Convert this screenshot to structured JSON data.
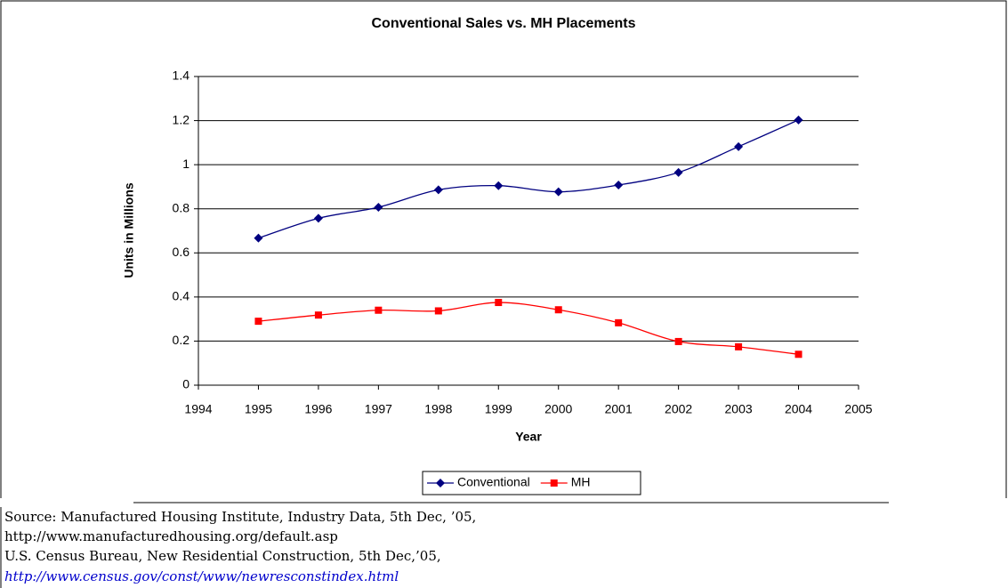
{
  "chart_data": {
    "type": "line",
    "title": "Conventional Sales vs. MH Placements",
    "x_label": "Year",
    "y_label": "Units in Millions",
    "x": [
      1995,
      1996,
      1997,
      1998,
      1999,
      2000,
      2001,
      2002,
      2003,
      2004
    ],
    "series": [
      {
        "name": "Conventional",
        "color": "#000080",
        "marker": "diamond",
        "values": [
          0.667,
          0.757,
          0.807,
          0.886,
          0.905,
          0.877,
          0.908,
          0.965,
          1.082,
          1.203
        ]
      },
      {
        "name": "MH",
        "color": "#ff0000",
        "marker": "square",
        "values": [
          0.29,
          0.318,
          0.34,
          0.337,
          0.375,
          0.342,
          0.283,
          0.198,
          0.174,
          0.14
        ]
      }
    ],
    "xlim": [
      1994,
      2005
    ],
    "xticks": [
      1994,
      1995,
      1996,
      1997,
      1998,
      1999,
      2000,
      2001,
      2002,
      2003,
      2004,
      2005
    ],
    "ylim": [
      0,
      1.4
    ],
    "yticks": [
      0,
      0.2,
      0.4,
      0.6,
      0.8,
      1,
      1.2,
      1.4
    ],
    "grid": true,
    "legend": "bottom",
    "smooth": true
  },
  "source": [
    "Source: Manufactured Housing Institute, Industry Data, 5th Dec, ’05,",
    "http://www.manufacturedhousing.org/default.asp",
    "U.S. Census Bureau, New Residential Construction, 5th Dec,’05,",
    "http://www.census.gov/const/www/newresconstindex.html"
  ]
}
